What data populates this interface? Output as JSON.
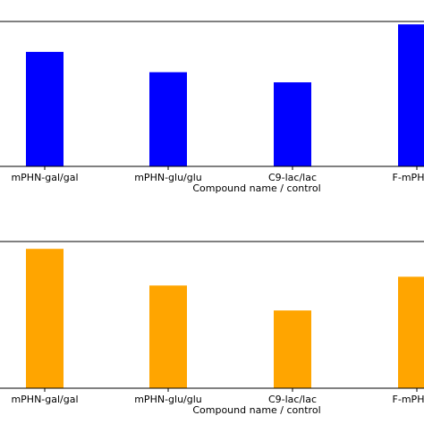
{
  "chart_data": [
    {
      "type": "bar",
      "categories": [
        "mPHN-gal/gal",
        "mPHN-glu/glu",
        "C9-lac/lac",
        "F-mPHN-e"
      ],
      "values": [
        0.79,
        0.65,
        0.58,
        0.98
      ],
      "ylim": [
        0,
        1.0
      ],
      "xlabel": "Compound name / control",
      "ylabel": "",
      "color": "#0000ff",
      "grid": false
    },
    {
      "type": "bar",
      "categories": [
        "mPHN-gal/gal",
        "mPHN-glu/glu",
        "C9-lac/lac",
        "F-mPHN-e"
      ],
      "values": [
        0.95,
        0.7,
        0.53,
        0.76
      ],
      "ylim": [
        0,
        1.0
      ],
      "xlabel": "Compound name / control",
      "ylabel": "",
      "color": "#ffa500",
      "grid": false
    }
  ]
}
